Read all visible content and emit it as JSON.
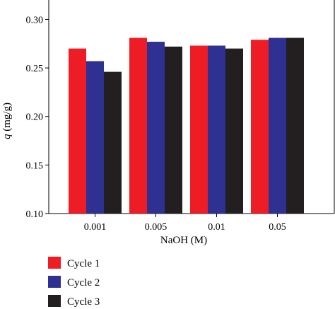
{
  "chart_data": {
    "type": "bar",
    "xlabel": "NaOH (M)",
    "ylabel_italic": "q",
    "ylabel_rest": " (mg/g)",
    "ylim": [
      0.1,
      0.32
    ],
    "yticks": [
      0.1,
      0.15,
      0.2,
      0.25,
      0.3
    ],
    "ytick_labels": [
      "0.10",
      "0.15",
      "0.20",
      "0.25",
      "0.30"
    ],
    "categories": [
      "0.001",
      "0.005",
      "0.01",
      "0.05"
    ],
    "series": [
      {
        "name": "Cycle 1",
        "color": "#ee1c25",
        "values": [
          0.27,
          0.281,
          0.273,
          0.279
        ]
      },
      {
        "name": "Cycle 2",
        "color": "#2e3192",
        "values": [
          0.257,
          0.277,
          0.273,
          0.281
        ]
      },
      {
        "name": "Cycle 3",
        "color": "#231f20",
        "values": [
          0.246,
          0.272,
          0.27,
          0.281
        ]
      }
    ],
    "legend_position": "bottom-left",
    "grid": false
  }
}
